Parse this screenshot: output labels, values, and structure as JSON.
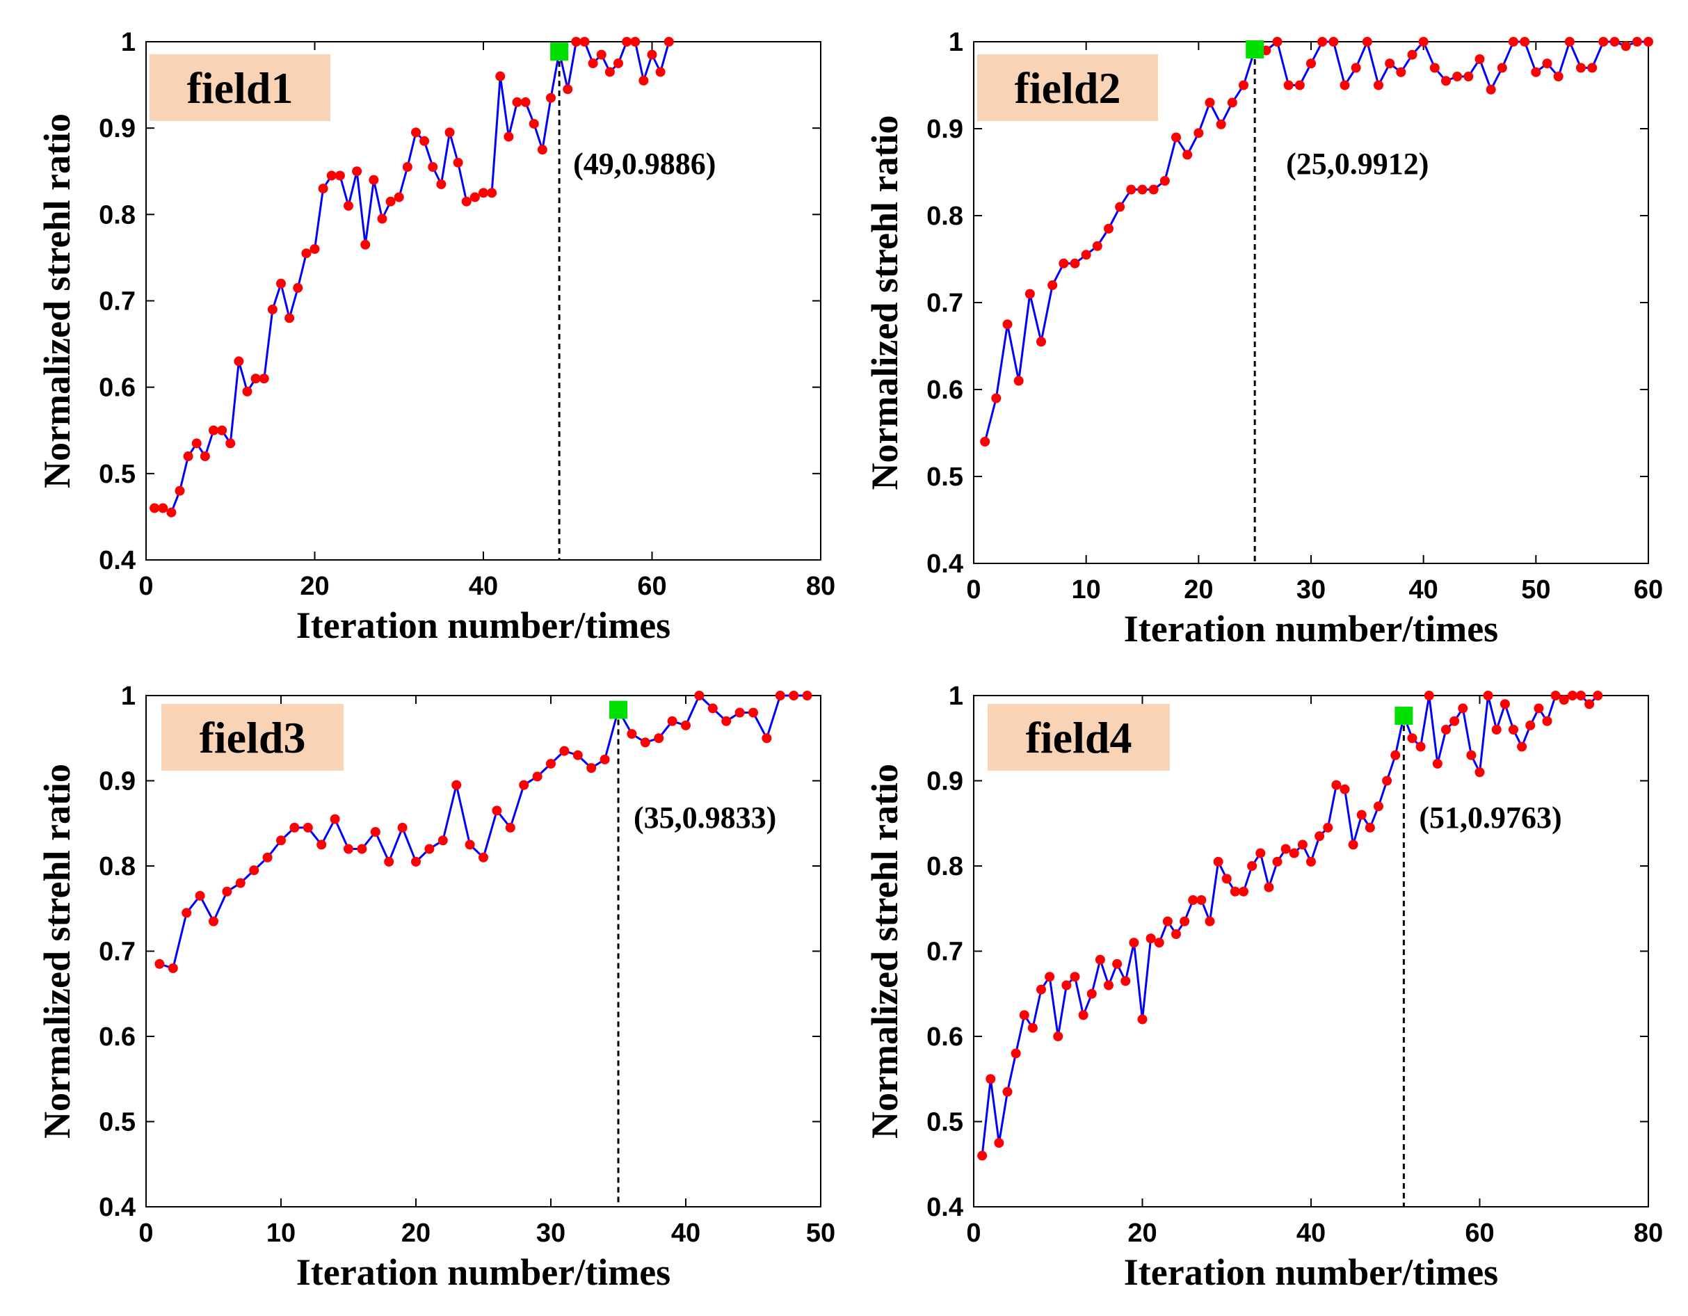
{
  "figure": {
    "colors": {
      "line": "#0000ff",
      "marker": "#ff0000",
      "highlight": "#00e000",
      "label_box": "#f9d3b6",
      "axis": "#000000"
    }
  },
  "chart_data": [
    {
      "type": "line",
      "title": "field1",
      "xlabel": "Iteration number/times",
      "ylabel": "Normalized strehl ratio",
      "xlim": [
        0,
        80
      ],
      "ylim": [
        0.4,
        1
      ],
      "xticks": [
        "0",
        "20",
        "40",
        "60",
        "80"
      ],
      "yticks": [
        "0.4",
        "0.5",
        "0.6",
        "0.7",
        "0.8",
        "0.9",
        "1"
      ],
      "annotation": "(49,0.9886)",
      "highlight": {
        "x": 49,
        "y": 0.9886
      },
      "series": [
        {
          "name": "field1",
          "x": [
            1,
            2,
            3,
            4,
            5,
            6,
            7,
            8,
            9,
            10,
            11,
            12,
            13,
            14,
            15,
            16,
            17,
            18,
            19,
            20,
            21,
            22,
            23,
            24,
            25,
            26,
            27,
            28,
            29,
            30,
            31,
            32,
            33,
            34,
            35,
            36,
            37,
            38,
            39,
            40,
            41,
            42,
            43,
            44,
            45,
            46,
            47,
            48,
            49,
            50,
            51,
            52,
            53,
            54,
            55,
            56,
            57,
            58,
            59,
            60,
            61,
            62
          ],
          "values": [
            0.46,
            0.46,
            0.455,
            0.48,
            0.52,
            0.535,
            0.52,
            0.55,
            0.55,
            0.535,
            0.63,
            0.595,
            0.61,
            0.61,
            0.69,
            0.72,
            0.68,
            0.715,
            0.755,
            0.76,
            0.83,
            0.845,
            0.845,
            0.81,
            0.85,
            0.765,
            0.84,
            0.795,
            0.815,
            0.82,
            0.855,
            0.895,
            0.885,
            0.855,
            0.835,
            0.895,
            0.86,
            0.815,
            0.82,
            0.825,
            0.825,
            0.96,
            0.89,
            0.93,
            0.93,
            0.905,
            0.875,
            0.935,
            0.9886,
            0.945,
            1.0,
            1.0,
            0.975,
            0.985,
            0.965,
            0.975,
            1.0,
            1.0,
            0.955,
            0.985,
            0.965,
            1.0
          ]
        }
      ]
    },
    {
      "type": "line",
      "title": "field2",
      "xlabel": "Iteration number/times",
      "ylabel": "Normalized strehl ratio",
      "xlim": [
        0,
        60
      ],
      "ylim": [
        0.4,
        1
      ],
      "xticks": [
        "0",
        "10",
        "20",
        "30",
        "40",
        "50",
        "60"
      ],
      "yticks": [
        "0.4",
        "0.5",
        "0.6",
        "0.7",
        "0.8",
        "0.9",
        "1"
      ],
      "annotation": "(25,0.9912)",
      "highlight": {
        "x": 25,
        "y": 0.9912
      },
      "series": [
        {
          "name": "field2",
          "x": [
            1,
            2,
            3,
            4,
            5,
            6,
            7,
            8,
            9,
            10,
            11,
            12,
            13,
            14,
            15,
            16,
            17,
            18,
            19,
            20,
            21,
            22,
            23,
            24,
            25,
            26,
            27,
            28,
            29,
            30,
            31,
            32,
            33,
            34,
            35,
            36,
            37,
            38,
            39,
            40,
            41,
            42,
            43,
            44,
            45,
            46,
            47,
            48,
            49,
            50,
            51,
            52,
            53,
            54,
            55,
            56,
            57,
            58,
            59,
            60
          ],
          "values": [
            0.54,
            0.59,
            0.675,
            0.61,
            0.71,
            0.655,
            0.72,
            0.745,
            0.745,
            0.755,
            0.765,
            0.785,
            0.81,
            0.83,
            0.83,
            0.83,
            0.84,
            0.89,
            0.87,
            0.895,
            0.93,
            0.905,
            0.93,
            0.95,
            0.9912,
            0.99,
            1.0,
            0.95,
            0.95,
            0.975,
            1.0,
            1.0,
            0.95,
            0.97,
            1.0,
            0.95,
            0.975,
            0.965,
            0.985,
            1.0,
            0.97,
            0.955,
            0.96,
            0.96,
            0.98,
            0.945,
            0.97,
            1.0,
            1.0,
            0.965,
            0.975,
            0.96,
            1.0,
            0.97,
            0.97,
            1.0,
            1.0,
            0.995,
            1.0,
            1.0
          ]
        }
      ]
    },
    {
      "type": "line",
      "title": "field3",
      "xlabel": "Iteration number/times",
      "ylabel": "Normalized strehl ratio",
      "xlim": [
        0,
        50
      ],
      "ylim": [
        0.4,
        1
      ],
      "xticks": [
        "0",
        "10",
        "20",
        "30",
        "40",
        "50"
      ],
      "yticks": [
        "0.4",
        "0.5",
        "0.6",
        "0.7",
        "0.8",
        "0.9",
        "1"
      ],
      "annotation": "(35,0.9833)",
      "highlight": {
        "x": 35,
        "y": 0.9833
      },
      "series": [
        {
          "name": "field3",
          "x": [
            1,
            2,
            3,
            4,
            5,
            6,
            7,
            8,
            9,
            10,
            11,
            12,
            13,
            14,
            15,
            16,
            17,
            18,
            19,
            20,
            21,
            22,
            23,
            24,
            25,
            26,
            27,
            28,
            29,
            30,
            31,
            32,
            33,
            34,
            35,
            36,
            37,
            38,
            39,
            40,
            41,
            42,
            43,
            44,
            45,
            46,
            47,
            48,
            49
          ],
          "values": [
            0.685,
            0.68,
            0.745,
            0.765,
            0.735,
            0.77,
            0.78,
            0.795,
            0.81,
            0.83,
            0.845,
            0.845,
            0.825,
            0.855,
            0.82,
            0.82,
            0.84,
            0.805,
            0.845,
            0.805,
            0.82,
            0.83,
            0.895,
            0.825,
            0.81,
            0.865,
            0.845,
            0.895,
            0.905,
            0.92,
            0.935,
            0.93,
            0.915,
            0.925,
            0.9833,
            0.955,
            0.945,
            0.95,
            0.97,
            0.965,
            1.0,
            0.985,
            0.97,
            0.98,
            0.98,
            0.95,
            1.0,
            1.0,
            1.0
          ]
        }
      ]
    },
    {
      "type": "line",
      "title": "field4",
      "xlabel": "Iteration number/times",
      "ylabel": "Normalized strehl ratio",
      "xlim": [
        0,
        80
      ],
      "ylim": [
        0.4,
        1
      ],
      "xticks": [
        "0",
        "20",
        "40",
        "60",
        "80"
      ],
      "yticks": [
        "0.4",
        "0.5",
        "0.6",
        "0.7",
        "0.8",
        "0.9",
        "1"
      ],
      "annotation": "(51,0.9763)",
      "highlight": {
        "x": 51,
        "y": 0.9763
      },
      "series": [
        {
          "name": "field4",
          "x": [
            1,
            2,
            3,
            4,
            5,
            6,
            7,
            8,
            9,
            10,
            11,
            12,
            13,
            14,
            15,
            16,
            17,
            18,
            19,
            20,
            21,
            22,
            23,
            24,
            25,
            26,
            27,
            28,
            29,
            30,
            31,
            32,
            33,
            34,
            35,
            36,
            37,
            38,
            39,
            40,
            41,
            42,
            43,
            44,
            45,
            46,
            47,
            48,
            49,
            50,
            51,
            52,
            53,
            54,
            55,
            56,
            57,
            58,
            59,
            60,
            61,
            62,
            63,
            64,
            65,
            66,
            67,
            68,
            69,
            70,
            71,
            72,
            73,
            74
          ],
          "values": [
            0.46,
            0.55,
            0.475,
            0.535,
            0.58,
            0.625,
            0.61,
            0.655,
            0.67,
            0.6,
            0.66,
            0.67,
            0.625,
            0.65,
            0.69,
            0.66,
            0.685,
            0.665,
            0.71,
            0.62,
            0.715,
            0.71,
            0.735,
            0.72,
            0.735,
            0.76,
            0.76,
            0.735,
            0.805,
            0.785,
            0.77,
            0.77,
            0.8,
            0.815,
            0.775,
            0.805,
            0.82,
            0.815,
            0.825,
            0.805,
            0.835,
            0.845,
            0.895,
            0.89,
            0.825,
            0.86,
            0.845,
            0.87,
            0.9,
            0.93,
            0.9763,
            0.95,
            0.94,
            1.0,
            0.92,
            0.96,
            0.97,
            0.985,
            0.93,
            0.91,
            1.0,
            0.96,
            0.99,
            0.96,
            0.94,
            0.965,
            0.985,
            0.97,
            1.0,
            0.995,
            1.0,
            1.0,
            0.99,
            1.0
          ]
        }
      ]
    }
  ]
}
